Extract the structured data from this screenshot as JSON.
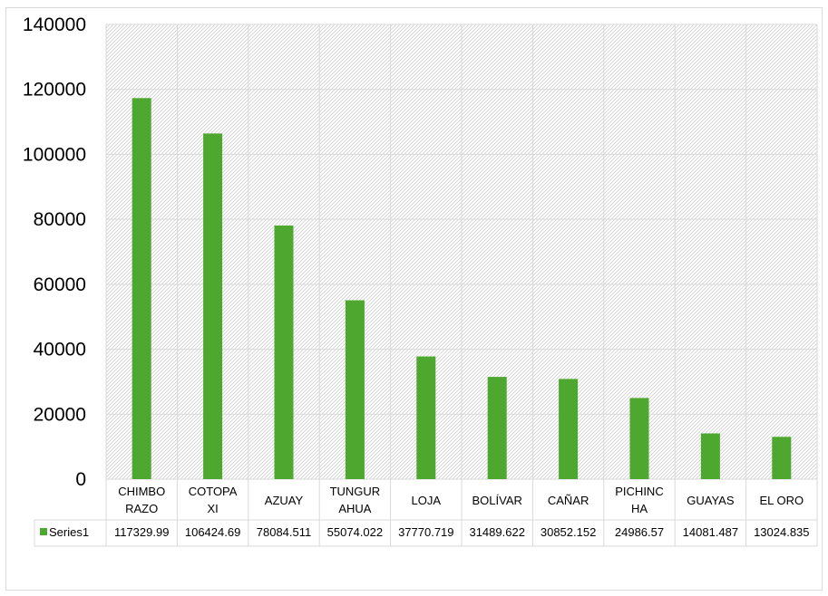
{
  "chart_data": {
    "type": "bar",
    "categories": [
      "CHIMBO RAZO",
      "COTOPA XI",
      "AZUAY",
      "TUNGUR AHUA",
      "LOJA",
      "BOLÍVAR",
      "CAÑAR",
      "PICHINC HA",
      "GUAYAS",
      "EL ORO"
    ],
    "category_lines": [
      [
        "CHIMBO",
        "RAZO"
      ],
      [
        "COTOPA",
        "XI"
      ],
      [
        "AZUAY"
      ],
      [
        "TUNGUR",
        "AHUA"
      ],
      [
        "LOJA"
      ],
      [
        "BOLÍVAR"
      ],
      [
        "CAÑAR"
      ],
      [
        "PICHINC",
        "HA"
      ],
      [
        "GUAYAS"
      ],
      [
        "EL ORO"
      ]
    ],
    "series": [
      {
        "name": "Series1",
        "values": [
          117329.99,
          106424.69,
          78084.511,
          55074.022,
          37770.719,
          31489.622,
          30852.152,
          24986.57,
          14081.487,
          13024.835
        ],
        "value_labels": [
          "117329.99",
          "106424.69",
          "78084.511",
          "55074.022",
          "37770.719",
          "31489.622",
          "30852.152",
          "24986.57",
          "14081.487",
          "13024.835"
        ],
        "color": "#4ea72e"
      }
    ],
    "ylim": [
      0,
      140000
    ],
    "yticks": [
      0,
      20000,
      40000,
      60000,
      80000,
      100000,
      120000,
      140000
    ],
    "grid": true,
    "plot_fill": "hatched",
    "data_table": true,
    "legend": "in-data-table",
    "title": "",
    "xlabel": "",
    "ylabel": ""
  }
}
